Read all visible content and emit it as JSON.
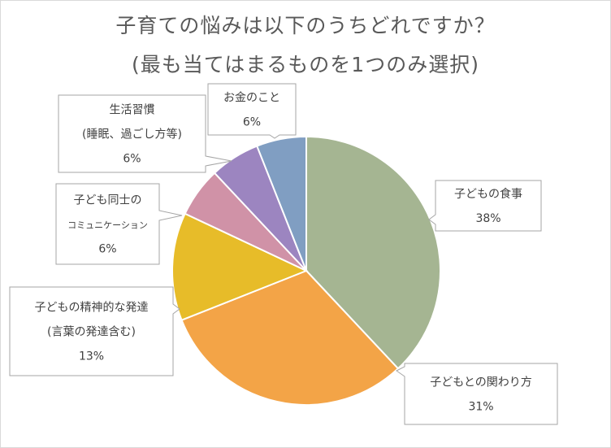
{
  "chart_data": {
    "type": "pie",
    "title": "子育ての悩みは以下のうちどれですか？",
    "subtitle": "(最も当てはまるものを1つのみ選択)",
    "slices": [
      {
        "label_lines": [
          "子どもの食事"
        ],
        "value": 38,
        "value_label": "38%",
        "color": "#a5b592"
      },
      {
        "label_lines": [
          "子どもとの関わり方"
        ],
        "value": 31,
        "value_label": "31%",
        "color": "#f3a447"
      },
      {
        "label_lines": [
          "子どもの精神的な発達",
          "(言葉の発達含む)"
        ],
        "value": 13,
        "value_label": "13%",
        "color": "#e7bc29"
      },
      {
        "label_lines": [
          "子ども同士の",
          "コミュニケーション"
        ],
        "value": 6,
        "value_label": "6%",
        "color": "#d092a7"
      },
      {
        "label_lines": [
          "生活習慣",
          "(睡眠、過ごし方等)"
        ],
        "value": 6,
        "value_label": "6%",
        "color": "#9c85c0"
      },
      {
        "label_lines": [
          "お金のこと"
        ],
        "value": 6,
        "value_label": "6%",
        "color": "#809ec2"
      }
    ]
  }
}
